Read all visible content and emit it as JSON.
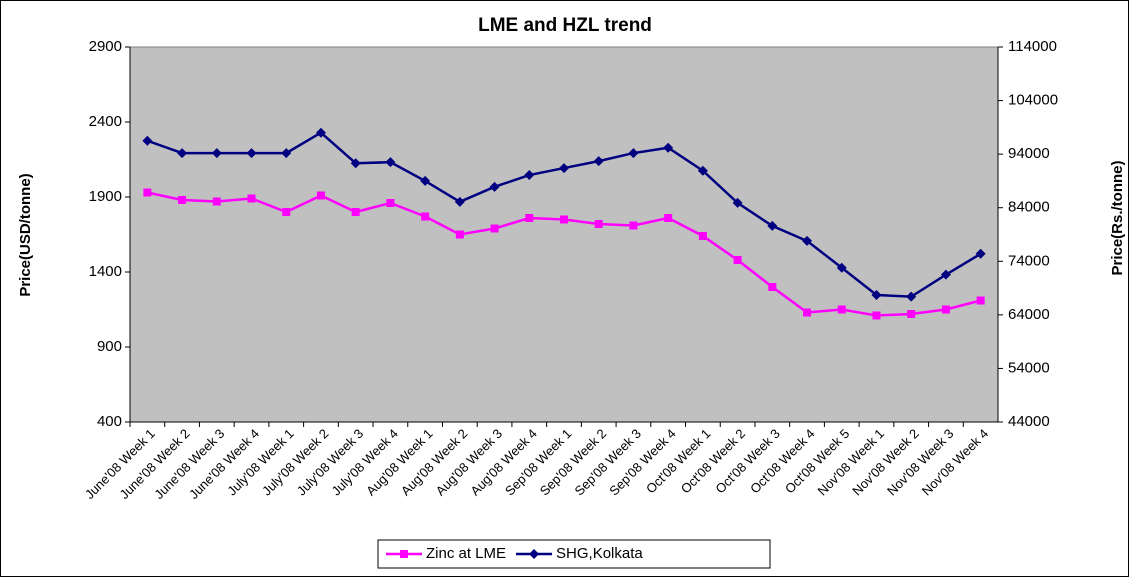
{
  "chart_data": {
    "type": "line",
    "title": "LME and HZL trend",
    "y_label": "Price(USD/tonne)",
    "y2_label": "Price(Rs./tonne)",
    "categories": [
      "June'08 Week 1",
      "June'08 Week 2",
      "June'08 Week 3",
      "June'08 Week 4",
      "July'08 Week 1",
      "July'08 Week 2",
      "July'08 Week 3",
      "July'08 Week 4",
      "Aug'08 Week 1",
      "Aug'08 Week 2",
      "Aug'08 Week 3",
      "Aug'08 Week 4",
      "Sep'08 Week 1",
      "Sep'08 Week 2",
      "Sep'08 Week 3",
      "Sep'08 Week 4",
      "Oct'08 Week 1",
      "Oct'08 Week 2",
      "Oct'08 Week 3",
      "Oct'08 Week 4",
      "Oct'08 Week 5",
      "Nov'08 Week 1",
      "Nov'08 Week 2",
      "Nov'08 Week 3",
      "Nov'08 Week 4"
    ],
    "series": [
      {
        "name": "Zinc at LME",
        "color": "#ff00ff",
        "values": [
          1930,
          1880,
          1870,
          1890,
          1800,
          1910,
          1800,
          1860,
          1770,
          1650,
          1690,
          1760,
          1750,
          1720,
          1710,
          1760,
          1640,
          1480,
          1300,
          1130,
          1150,
          1110,
          1120,
          1150,
          1210
        ]
      },
      {
        "name": "SHG,Kolkata",
        "color": "#000080",
        "axis": "y2",
        "values": [
          96500,
          94200,
          94200,
          94200,
          94200,
          98000,
          92300,
          92500,
          89000,
          85100,
          87900,
          90100,
          91400,
          92700,
          94200,
          95200,
          90900,
          84900,
          80600,
          77800,
          72800,
          67700,
          67400,
          71500,
          75400
        ]
      }
    ],
    "ylim": [
      400,
      2900
    ],
    "yticks": [
      400,
      900,
      1400,
      1900,
      2400,
      2900
    ],
    "y2lim": [
      44000,
      114000
    ],
    "y2ticks": [
      44000,
      54000,
      64000,
      74000,
      84000,
      94000,
      104000,
      114000
    ],
    "plot_background": "#c0c0c0",
    "legend": "bottom"
  }
}
